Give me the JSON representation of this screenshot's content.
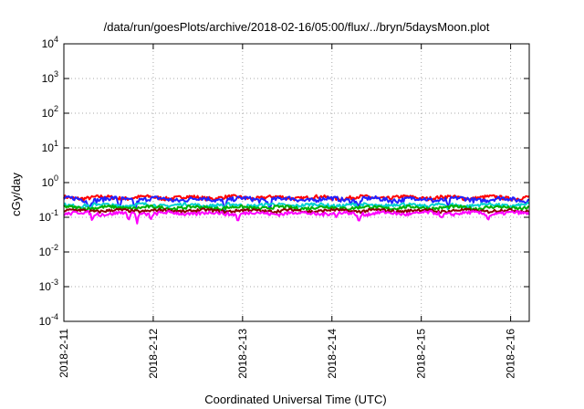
{
  "chart_data": {
    "type": "line",
    "title": "/data/run/goesPlots/archive/2018-02-16/05:00/flux/../bryn/5daysMoon.plot",
    "xlabel": "Coordinated Universal Time (UTC)",
    "ylabel": "cGy/day",
    "yscale": "log",
    "ylim": [
      0.0001,
      10000
    ],
    "y_ticks": [
      {
        "base": "10",
        "exp": "-4",
        "value": 0.0001
      },
      {
        "base": "10",
        "exp": "-3",
        "value": 0.001
      },
      {
        "base": "10",
        "exp": "-2",
        "value": 0.01
      },
      {
        "base": "10",
        "exp": "-1",
        "value": 0.1
      },
      {
        "base": "10",
        "exp": "0",
        "value": 1
      },
      {
        "base": "10",
        "exp": "1",
        "value": 10
      },
      {
        "base": "10",
        "exp": "2",
        "value": 100
      },
      {
        "base": "10",
        "exp": "3",
        "value": 1000
      },
      {
        "base": "10",
        "exp": "4",
        "value": 10000
      }
    ],
    "xlim": [
      "2018-02-11 00:00",
      "2018-02-16 05:00"
    ],
    "x_ticks": [
      "2018-2-11",
      "2018-2-12",
      "2018-2-13",
      "2018-2-14",
      "2018-2-15",
      "2018-2-16"
    ],
    "grid": true,
    "series": [
      {
        "color": "#ff0000",
        "base": 0.37,
        "noise": 0.045,
        "dips": []
      },
      {
        "color": "#2020ff",
        "base": 0.33,
        "noise": 0.05,
        "dips": [
          [
            0.28,
            0.55
          ],
          [
            0.62,
            0.5
          ],
          [
            0.8,
            0.55
          ],
          [
            1.8,
            0.5
          ],
          [
            2.3,
            0.55
          ],
          [
            3.3,
            0.55
          ],
          [
            4.3,
            0.55
          ]
        ]
      },
      {
        "color": "#00d0d0",
        "base": 0.225,
        "noise": 0.025,
        "dips": [
          [
            0.3,
            0.7
          ],
          [
            1.8,
            0.7
          ],
          [
            3.3,
            0.7
          ],
          [
            4.3,
            0.7
          ]
        ]
      },
      {
        "color": "#00b000",
        "base": 0.19,
        "noise": 0.02,
        "dips": []
      },
      {
        "color": "#8b0000",
        "base": 0.155,
        "noise": 0.015,
        "dips": []
      },
      {
        "color": "#ff00ff",
        "base": 0.13,
        "noise": 0.015,
        "dips": [
          [
            0.32,
            0.6
          ],
          [
            0.72,
            0.55
          ],
          [
            0.82,
            0.55
          ],
          [
            0.98,
            0.7
          ],
          [
            1.95,
            0.6
          ],
          [
            3.05,
            0.7
          ],
          [
            3.3,
            0.55
          ],
          [
            4.23,
            0.7
          ],
          [
            4.75,
            0.7
          ]
        ]
      }
    ]
  }
}
